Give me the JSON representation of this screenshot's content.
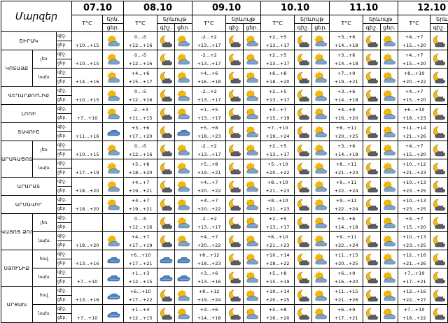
{
  "header": {
    "title": "Մարզեր",
    "days": [
      "07.10",
      "08.10",
      "09.10",
      "10.10",
      "11.10",
      "12.10"
    ],
    "temp_label": "T°C",
    "cloud_label_first": "երն.",
    "cloud_label": "երևույթ",
    "night_short": "գիշ.",
    "day_short": "ցեր."
  },
  "row_labels": {
    "night": "գիշ.",
    "day": "ցեր."
  },
  "rows": [
    {
      "region": "ՇԻՐԱԿ",
      "sub": "",
      "region_rows": 1,
      "temps": [
        [
          "",
          "+10…+15"
        ],
        [
          "0…-5",
          "+12…+16"
        ],
        [
          "-2…+2",
          "+13…+17"
        ],
        [
          "+2…+5",
          "+13…+17"
        ],
        [
          "+3…+6",
          "+14…+18"
        ],
        [
          "+4…+7",
          "+15…+20"
        ]
      ],
      "icons": [
        [
          "cloud-sun-icon"
        ],
        [
          "moon-cloud-icon",
          "cloud-sun-icon"
        ],
        [
          "moon-cloud-icon",
          "cloud-sun-icon"
        ],
        [
          "moon-cloud-icon",
          "cloud-sun-icon"
        ],
        [
          "moon-cloud-icon",
          "cloud-sun-icon"
        ],
        [
          "moon-cloud-icon",
          "cloud-sun-icon"
        ]
      ]
    },
    {
      "region": "ԿՈՏԱՅՔ",
      "sub": "լեռ.",
      "region_rows": 2,
      "temps": [
        [
          "",
          "+10…+15"
        ],
        [
          "0…-5",
          "+12…+16"
        ],
        [
          "-2…+2",
          "+13…+17"
        ],
        [
          "+2…+5",
          "+13…+17"
        ],
        [
          "+3…+6",
          "+14…+18"
        ],
        [
          "+4…+7",
          "+15…+20"
        ]
      ],
      "icons": [
        [
          "cloud-sun-icon"
        ],
        [
          "moon-cloud-icon",
          "cloud-sun-icon"
        ],
        [
          "moon-cloud-icon",
          "cloud-sun-icon"
        ],
        [
          "moon-cloud-icon",
          "cloud-sun-icon"
        ],
        [
          "moon-cloud-icon",
          "cloud-sun-icon"
        ],
        [
          "moon-cloud-icon",
          "cloud-sun-icon"
        ]
      ]
    },
    {
      "region": "",
      "sub": "նախ.",
      "region_rows": 0,
      "temps": [
        [
          "",
          "+14…+16"
        ],
        [
          "+4…+6",
          "+15…+17"
        ],
        [
          "+4…+6",
          "+16…+18"
        ],
        [
          "+6…+8",
          "+18…+20"
        ],
        [
          "+7…+9",
          "+19…+21"
        ],
        [
          "+8…+10",
          "+20…+22"
        ]
      ],
      "icons": [
        [
          "cloud-sun-icon"
        ],
        [
          "moon-cloud-icon",
          "cloud-sun-icon"
        ],
        [
          "moon-cloud-icon",
          "cloud-sun-icon"
        ],
        [
          "moon-cloud-icon",
          "cloud-sun-icon"
        ],
        [
          "moon-cloud-icon",
          "cloud-sun-icon"
        ],
        [
          "moon-cloud-icon",
          "cloud-sun-icon"
        ]
      ]
    },
    {
      "region": "ԳԵՂԱՐՔՈՒՆԻՔ",
      "sub": "",
      "region_rows": 1,
      "temps": [
        [
          "",
          "+10…+15"
        ],
        [
          "0…-5",
          "+12…+16"
        ],
        [
          "-2…+2",
          "+13…+17"
        ],
        [
          "+2…+5",
          "+13…+17"
        ],
        [
          "+3…+6",
          "+14…+18"
        ],
        [
          "+4…+7",
          "+15…+20"
        ]
      ],
      "icons": [
        [
          "cloud-sun-icon"
        ],
        [
          "moon-cloud-icon",
          "cloud-sun-icon"
        ],
        [
          "moon-cloud-icon",
          "cloud-sun-icon"
        ],
        [
          "moon-cloud-icon",
          "cloud-sun-icon"
        ],
        [
          "moon-cloud-icon",
          "cloud-sun-icon"
        ],
        [
          "moon-cloud-icon",
          "cloud-sun-icon"
        ]
      ]
    },
    {
      "region": "ԼՈՌԻ",
      "sub": "",
      "region_rows": 1,
      "temps": [
        [
          "",
          "+7…+10"
        ],
        [
          "-2…+3",
          "+11…+15"
        ],
        [
          "+1…+5",
          "+13…+17"
        ],
        [
          "+3…+7",
          "+15…+19"
        ],
        [
          "+4…+8",
          "+16…+20"
        ],
        [
          "+6…+10",
          "+18…+23"
        ]
      ],
      "icons": [
        [
          "cloud-sun-icon"
        ],
        [
          "moon-cloud-icon",
          "cloud-sun-icon"
        ],
        [
          "moon-cloud-icon",
          "cloud-sun-icon"
        ],
        [
          "moon-cloud-icon",
          "cloud-sun-icon"
        ],
        [
          "moon-cloud-icon",
          "cloud-sun-icon"
        ],
        [
          "moon-cloud-icon",
          "cloud-sun-icon"
        ]
      ]
    },
    {
      "region": "ՏԱՎՈՒՇ",
      "sub": "",
      "region_rows": 1,
      "temps": [
        [
          "",
          "+11…+16"
        ],
        [
          "+3…+6",
          "+17…+20"
        ],
        [
          "+5…+8",
          "+18…+23"
        ],
        [
          "+7…+10",
          "+19…+24"
        ],
        [
          "+8…+11",
          "+20…+25"
        ],
        [
          "+11…+14",
          "+21…+26"
        ]
      ],
      "icons": [
        [
          "cloud-icon"
        ],
        [
          "moon-cloud-icon",
          "cloud-icon"
        ],
        [
          "moon-cloud-icon",
          "cloud-sun-icon"
        ],
        [
          "moon-cloud-icon",
          "cloud-sun-icon"
        ],
        [
          "moon-cloud-icon",
          "cloud-sun-icon"
        ],
        [
          "moon-cloud-icon",
          "cloud-sun-icon"
        ]
      ]
    },
    {
      "region": "ԱՐԱԳԱԾՈՏՆ",
      "sub": "լեռ.",
      "region_rows": 2,
      "temps": [
        [
          "",
          "+10…+15"
        ],
        [
          "0…-5",
          "+12…+16"
        ],
        [
          "-2…+2",
          "+13…+17"
        ],
        [
          "+2…+5",
          "+13…+17"
        ],
        [
          "+3…+6",
          "+14…+18"
        ],
        [
          "+4…+7",
          "+15…+20"
        ]
      ],
      "icons": [
        [
          "cloud-sun-icon"
        ],
        [
          "moon-cloud-icon",
          "cloud-sun-icon"
        ],
        [
          "moon-cloud-icon",
          "cloud-sun-icon"
        ],
        [
          "moon-cloud-icon",
          "cloud-sun-icon"
        ],
        [
          "moon-cloud-icon",
          "cloud-sun-icon"
        ],
        [
          "moon-cloud-icon",
          "cloud-sun-icon"
        ]
      ]
    },
    {
      "region": "",
      "sub": "նախ.",
      "region_rows": 0,
      "temps": [
        [
          "",
          "+17…+19"
        ],
        [
          "+5…+8",
          "+18…+20"
        ],
        [
          "+5…+8",
          "+19…+21"
        ],
        [
          "+5…+10",
          "+20…+22"
        ],
        [
          "+8…+11",
          "+21…+23"
        ],
        [
          "+10…+12",
          "+21…+23"
        ]
      ],
      "icons": [
        [
          "cloud-sun-icon"
        ],
        [
          "moon-cloud-icon",
          "cloud-sun-icon"
        ],
        [
          "moon-cloud-icon",
          "cloud-sun-icon"
        ],
        [
          "moon-cloud-icon",
          "cloud-sun-icon"
        ],
        [
          "moon-cloud-icon",
          "cloud-sun-icon"
        ],
        [
          "moon-cloud-icon",
          "cloud-sun-icon"
        ]
      ]
    },
    {
      "region": "ԱՐԱՐԱՏ",
      "sub": "",
      "region_rows": 1,
      "temps": [
        [
          "",
          "+18…+20"
        ],
        [
          "+4…+7",
          "+19…+21"
        ],
        [
          "+4…+7",
          "+20…+22"
        ],
        [
          "+8…+10",
          "+21…+23"
        ],
        [
          "+9…+11",
          "+22…+24"
        ],
        [
          "+10…+13",
          "+23…+25"
        ]
      ],
      "icons": [
        [
          "cloud-sun-icon"
        ],
        [
          "moon-cloud-icon",
          "cloud-sun-icon"
        ],
        [
          "moon-cloud-icon",
          "cloud-sun-icon"
        ],
        [
          "moon-cloud-icon",
          "cloud-sun-icon"
        ],
        [
          "moon-cloud-icon",
          "cloud-sun-icon"
        ],
        [
          "moon-cloud-icon",
          "cloud-sun-icon"
        ]
      ]
    },
    {
      "region": "ԱՐՄԱՎԻՐ",
      "sub": "",
      "region_rows": 1,
      "temps": [
        [
          "",
          "+18…+20"
        ],
        [
          "+4…+7",
          "+19…+21"
        ],
        [
          "+4…+7",
          "+20…+22"
        ],
        [
          "+8…+10",
          "+21…+23"
        ],
        [
          "+9…+11",
          "+22…+24"
        ],
        [
          "+10…+13",
          "+23…+25"
        ]
      ],
      "icons": [
        [
          "cloud-sun-icon"
        ],
        [
          "moon-cloud-icon",
          "cloud-sun-icon"
        ],
        [
          "moon-cloud-icon",
          "cloud-sun-icon"
        ],
        [
          "moon-cloud-icon",
          "cloud-sun-icon"
        ],
        [
          "moon-cloud-icon",
          "cloud-sun-icon"
        ],
        [
          "moon-cloud-icon",
          "cloud-sun-icon"
        ]
      ]
    },
    {
      "region": "ՎԱՅՈՑ ՁՈՐ",
      "sub": "լեռ.",
      "region_rows": 2,
      "temps": [
        [
          "",
          ""
        ],
        [
          "0…-5",
          "+12…+16"
        ],
        [
          "-2…+2",
          "+13…+17"
        ],
        [
          "+2…+5",
          "+13…+17"
        ],
        [
          "+3…+6",
          "+14…+18"
        ],
        [
          "+4…+7",
          "+15…+20"
        ]
      ],
      "icons": [
        [],
        [
          "moon-cloud-icon",
          "cloud-sun-icon"
        ],
        [
          "moon-cloud-icon",
          "cloud-sun-icon"
        ],
        [
          "moon-cloud-icon",
          "cloud-sun-icon"
        ],
        [
          "moon-cloud-icon",
          "cloud-sun-icon"
        ],
        [
          "moon-cloud-icon",
          "cloud-sun-icon"
        ]
      ]
    },
    {
      "region": "",
      "sub": "նախ.",
      "region_rows": 0,
      "temps": [
        [
          "",
          "+18…+20"
        ],
        [
          "+4…+7",
          "+17…+19"
        ],
        [
          "+4…+7",
          "+20…+22"
        ],
        [
          "+8…+10",
          "+21…+23"
        ],
        [
          "+9…+11",
          "+22…+24"
        ],
        [
          "+10…+13",
          "+23…+25"
        ]
      ],
      "icons": [
        [
          "cloud-sun-icon"
        ],
        [
          "moon-cloud-icon",
          "cloud-sun-icon"
        ],
        [
          "moon-cloud-icon",
          "cloud-sun-icon"
        ],
        [
          "moon-cloud-icon",
          "cloud-sun-icon"
        ],
        [
          "moon-cloud-icon",
          "cloud-sun-icon"
        ],
        [
          "moon-cloud-icon",
          "cloud-sun-icon"
        ]
      ]
    },
    {
      "region": "ՍՅՈՒՆԻՔ",
      "sub": "հով.",
      "region_rows": 2,
      "temps": [
        [
          "",
          "+13…+16"
        ],
        [
          "+6…+10",
          "+17…+21"
        ],
        [
          "+8…+12",
          "+18…+23"
        ],
        [
          "+10…+14",
          "+18…+22"
        ],
        [
          "+11…+15",
          "+20…+25"
        ],
        [
          "+12…+16",
          "+21…+26"
        ]
      ],
      "icons": [
        [
          "cloud-icon"
        ],
        [
          "cloud-icon",
          "cloud-icon"
        ],
        [
          "moon-cloud-icon",
          "cloud-sun-icon"
        ],
        [
          "moon-cloud-icon",
          "cloud-sun-icon"
        ],
        [
          "moon-cloud-icon",
          "cloud-sun-icon"
        ],
        [
          "moon-cloud-icon",
          "cloud-sun-icon"
        ]
      ]
    },
    {
      "region": "",
      "sub": "նախ.",
      "region_rows": 0,
      "temps": [
        [
          "",
          "+7…+10"
        ],
        [
          "+1…+3",
          "+12…+15"
        ],
        [
          "+3…+6",
          "+13…+16"
        ],
        [
          "+5…+8",
          "+15…+19"
        ],
        [
          "+6…+9",
          "+16…+20"
        ],
        [
          "+7…+10",
          "+17…+21"
        ]
      ],
      "icons": [
        [
          "cloud-icon"
        ],
        [
          "cloud-icon",
          "cloud-icon"
        ],
        [
          "moon-cloud-icon",
          "cloud-sun-icon"
        ],
        [
          "moon-cloud-icon",
          "cloud-sun-icon"
        ],
        [
          "moon-cloud-icon",
          "cloud-sun-icon"
        ],
        [
          "moon-cloud-icon",
          "cloud-sun-icon"
        ]
      ]
    },
    {
      "region": "ԱՐՑԱԽ",
      "sub": "հով.",
      "region_rows": 2,
      "temps": [
        [
          "",
          "+13…+16"
        ],
        [
          "+6…+10",
          "+17…+22"
        ],
        [
          "+8…+12",
          "+19…+24"
        ],
        [
          "+10…+14",
          "+20…+25"
        ],
        [
          "+11…+15",
          "+21…+26"
        ],
        [
          "+12…+16",
          "+22…+27"
        ]
      ],
      "icons": [
        [
          "cloud-icon"
        ],
        [
          "moon-cloud-icon",
          "cloud-sun-icon"
        ],
        [
          "moon-cloud-icon",
          "cloud-sun-icon"
        ],
        [
          "moon-cloud-icon",
          "cloud-sun-icon"
        ],
        [
          "moon-cloud-icon",
          "cloud-sun-icon"
        ],
        [
          "moon-cloud-icon",
          "cloud-sun-icon"
        ]
      ]
    },
    {
      "region": "",
      "sub": "նախ.",
      "region_rows": 0,
      "temps": [
        [
          "",
          "+7…+10"
        ],
        [
          "+1…+4",
          "+12…+15"
        ],
        [
          "+3…+6",
          "+14…+18"
        ],
        [
          "+5…+8",
          "+16…+20"
        ],
        [
          "+6…+9",
          "+17…+21"
        ],
        [
          "+7…+10",
          "+18…+22"
        ]
      ],
      "icons": [
        [
          "cloud-icon"
        ],
        [
          "moon-cloud-icon",
          "cloud-sun-icon"
        ],
        [
          "moon-cloud-icon",
          "cloud-sun-icon"
        ],
        [
          "moon-cloud-icon",
          "cloud-sun-icon"
        ],
        [
          "moon-cloud-icon",
          "cloud-sun-icon"
        ],
        [
          "moon-cloud-icon",
          "cloud-sun-icon"
        ]
      ]
    }
  ]
}
